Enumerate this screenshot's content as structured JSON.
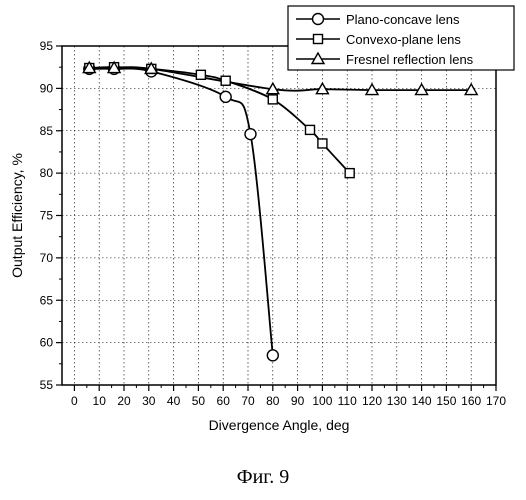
{
  "chart_data": {
    "type": "line",
    "xlabel": "Divergence Angle, deg",
    "ylabel": "Output Efficiency, %",
    "xlim": [
      -5,
      170
    ],
    "ylim": [
      55,
      95
    ],
    "x_ticks": [
      0,
      10,
      20,
      30,
      40,
      50,
      60,
      70,
      80,
      90,
      100,
      110,
      120,
      130,
      140,
      150,
      160,
      170
    ],
    "y_ticks": [
      55,
      60,
      65,
      70,
      75,
      80,
      85,
      90,
      95
    ],
    "grid": true,
    "legend_position": "top-right",
    "series": [
      {
        "name": "Plano-concave lens",
        "marker": "circle",
        "points": [
          [
            6,
            92.3
          ],
          [
            16,
            92.3
          ],
          [
            31,
            92.0
          ],
          [
            61,
            89.0
          ],
          [
            71,
            84.6
          ],
          [
            80,
            58.5
          ]
        ]
      },
      {
        "name": "Convexo-plane lens",
        "marker": "square",
        "points": [
          [
            6,
            92.4
          ],
          [
            16,
            92.5
          ],
          [
            31,
            92.3
          ],
          [
            51,
            91.6
          ],
          [
            61,
            90.9
          ],
          [
            80,
            88.7
          ],
          [
            95,
            85.1
          ],
          [
            100,
            83.5
          ],
          [
            111,
            80.0
          ]
        ]
      },
      {
        "name": "Fresnel reflection lens",
        "marker": "triangle",
        "points": [
          [
            6,
            92.4
          ],
          [
            16,
            92.4
          ],
          [
            31,
            92.3
          ],
          [
            80,
            89.9
          ],
          [
            100,
            89.9
          ],
          [
            120,
            89.8
          ],
          [
            140,
            89.8
          ],
          [
            160,
            89.8
          ]
        ]
      }
    ]
  },
  "caption": "Фиг. 9"
}
